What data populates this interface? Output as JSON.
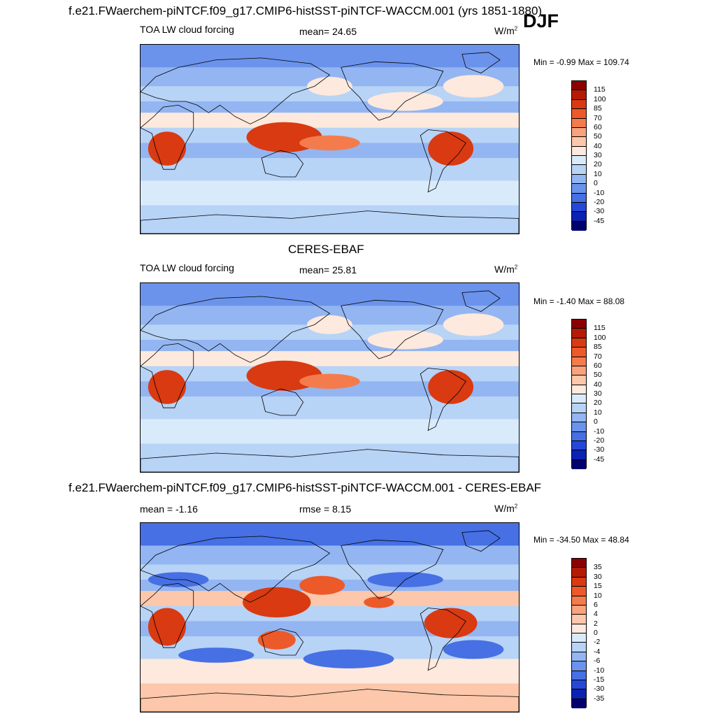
{
  "season": "DJF",
  "panel1": {
    "title": "f.e21.FWaerchem-piNTCF.f09_g17.CMIP6-histSST-piNTCF-WACCM.001 (yrs 1851-1880)",
    "left_label": "TOA LW cloud forcing",
    "stat_label": "mean=  24.65",
    "unit": "W/m",
    "unit_exp": "2",
    "minmax": "Min =  -0.99 Max = 109.74"
  },
  "panel2": {
    "title": "CERES-EBAF",
    "left_label": "TOA LW cloud forcing",
    "stat_label": "mean=  25.81",
    "unit": "W/m",
    "unit_exp": "2",
    "minmax": "Min =  -1.40 Max =  88.08"
  },
  "panel3": {
    "title": "f.e21.FWaerchem-piNTCF.f09_g17.CMIP6-histSST-piNTCF-WACCM.001 - CERES-EBAF",
    "left_label": "mean =  -1.16",
    "stat_label": "rmse =   8.15",
    "unit": "W/m",
    "unit_exp": "2",
    "minmax": "Min = -34.50 Max =  48.84"
  },
  "chart_data": [
    {
      "type": "heatmap",
      "title": "f.e21.FWaerchem-piNTCF.f09_g17.CMIP6-histSST-piNTCF-WACCM.001 (yrs 1851-1880)",
      "variable": "TOA LW cloud forcing",
      "mean": 24.65,
      "min": -0.99,
      "max": 109.74,
      "colorbar_levels": [
        "115",
        "100",
        "85",
        "70",
        "60",
        "50",
        "40",
        "30",
        "20",
        "10",
        "0",
        "-10",
        "-20",
        "-30",
        "-45"
      ],
      "colorbar_colors": [
        "#8b0000",
        "#b51a05",
        "#d93a12",
        "#ec5a2a",
        "#f47c4c",
        "#f9a27d",
        "#fcc7aa",
        "#fde9dd",
        "#d9ebfb",
        "#b7d3f6",
        "#93b5f2",
        "#6b93eb",
        "#4670e3",
        "#2548d8",
        "#0c22b3",
        "#00006e"
      ]
    },
    {
      "type": "heatmap",
      "title": "CERES-EBAF",
      "variable": "TOA LW cloud forcing",
      "mean": 25.81,
      "min": -1.4,
      "max": 88.08,
      "colorbar_levels": [
        "115",
        "100",
        "85",
        "70",
        "60",
        "50",
        "40",
        "30",
        "20",
        "10",
        "0",
        "-10",
        "-20",
        "-30",
        "-45"
      ],
      "colorbar_colors": [
        "#8b0000",
        "#b51a05",
        "#d93a12",
        "#ec5a2a",
        "#f47c4c",
        "#f9a27d",
        "#fcc7aa",
        "#fde9dd",
        "#d9ebfb",
        "#b7d3f6",
        "#93b5f2",
        "#6b93eb",
        "#4670e3",
        "#2548d8",
        "#0c22b3",
        "#00006e"
      ]
    },
    {
      "type": "heatmap",
      "title": "f.e21.FWaerchem-piNTCF.f09_g17.CMIP6-histSST-piNTCF-WACCM.001 - CERES-EBAF",
      "mean": -1.16,
      "rmse": 8.15,
      "min": -34.5,
      "max": 48.84,
      "colorbar_levels": [
        "35",
        "30",
        "15",
        "10",
        "6",
        "4",
        "2",
        "0",
        "-2",
        "-4",
        "-6",
        "-10",
        "-15",
        "-30",
        "-35"
      ],
      "colorbar_colors": [
        "#8b0000",
        "#b51a05",
        "#d93a12",
        "#ec5a2a",
        "#f47c4c",
        "#f9a27d",
        "#fcc7aa",
        "#fde9dd",
        "#d9ebfb",
        "#b7d3f6",
        "#93b5f2",
        "#6b93eb",
        "#4670e3",
        "#2548d8",
        "#0c22b3",
        "#00006e"
      ]
    }
  ]
}
